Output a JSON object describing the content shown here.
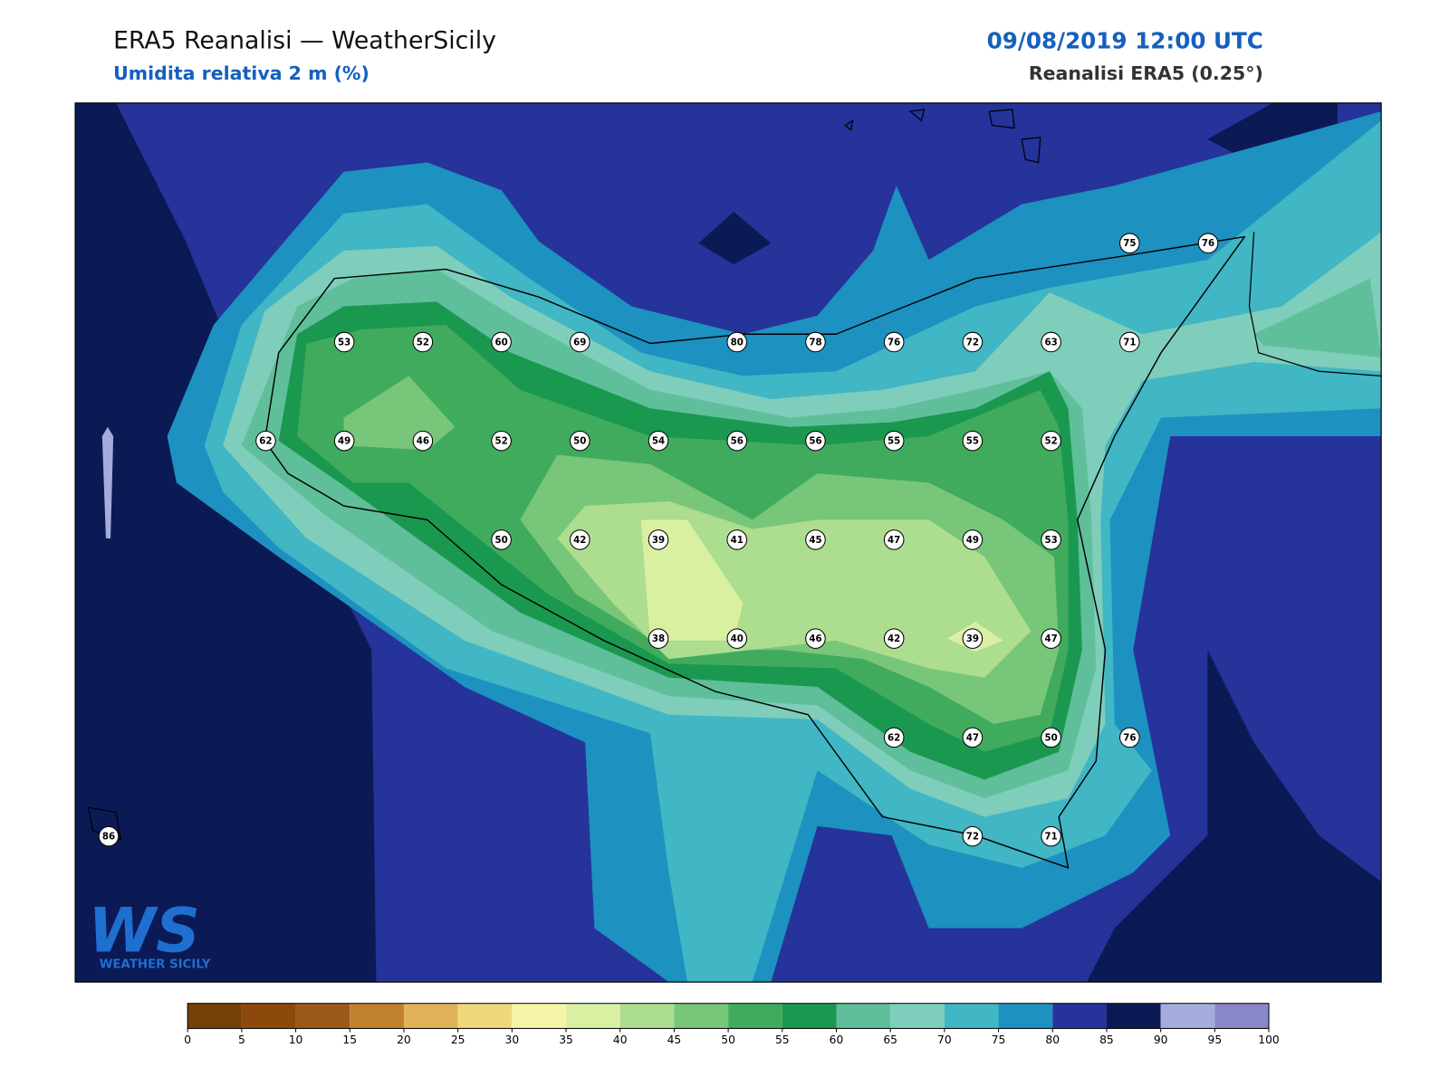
{
  "header": {
    "title": "ERA5 Reanalisi — WeatherSicily",
    "subtitle": "Umidita relativa 2 m (%)",
    "datetime": "09/08/2019 12:00 UTC",
    "source": "Reanalisi ERA5 (0.25°)"
  },
  "stations": {
    "rows": [
      [
        null,
        null,
        null,
        null,
        null,
        null,
        null,
        null,
        null,
        null,
        null,
        null,
        null,
        75,
        76
      ],
      [
        null,
        null,
        null,
        53,
        52,
        60,
        69,
        null,
        80,
        78,
        76,
        72,
        63,
        71,
        null
      ],
      [
        null,
        null,
        62,
        49,
        46,
        52,
        50,
        54,
        56,
        56,
        55,
        55,
        52,
        null,
        null
      ],
      [
        null,
        null,
        null,
        null,
        null,
        50,
        42,
        39,
        41,
        45,
        47,
        49,
        53,
        null,
        null
      ],
      [
        null,
        null,
        null,
        null,
        null,
        null,
        null,
        38,
        40,
        46,
        42,
        39,
        47,
        null,
        null
      ],
      [
        null,
        null,
        null,
        null,
        null,
        null,
        null,
        null,
        null,
        null,
        62,
        47,
        50,
        76,
        null
      ],
      [
        86,
        null,
        null,
        null,
        null,
        null,
        null,
        null,
        null,
        null,
        null,
        72,
        71,
        null,
        null
      ]
    ]
  },
  "colorbar": {
    "ticks": [
      0,
      5,
      10,
      15,
      20,
      25,
      30,
      35,
      40,
      45,
      50,
      55,
      60,
      65,
      70,
      75,
      80,
      85,
      90,
      95,
      100
    ],
    "colors": [
      "#744008",
      "#8b4a0c",
      "#9c5a1a",
      "#c1812e",
      "#e0b35a",
      "#f0d77b",
      "#f5f5a8",
      "#d9f0a3",
      "#addd8e",
      "#78c679",
      "#41ab5d",
      "#1a9850",
      "#5fbf9a",
      "#7fcdbb",
      "#41b6c4",
      "#1d91c0",
      "#25339a",
      "#0b1a55",
      "#a4acdc",
      "#8a87c8"
    ]
  },
  "logo": {
    "mark": "WS",
    "text": "WEATHER SICILY"
  }
}
